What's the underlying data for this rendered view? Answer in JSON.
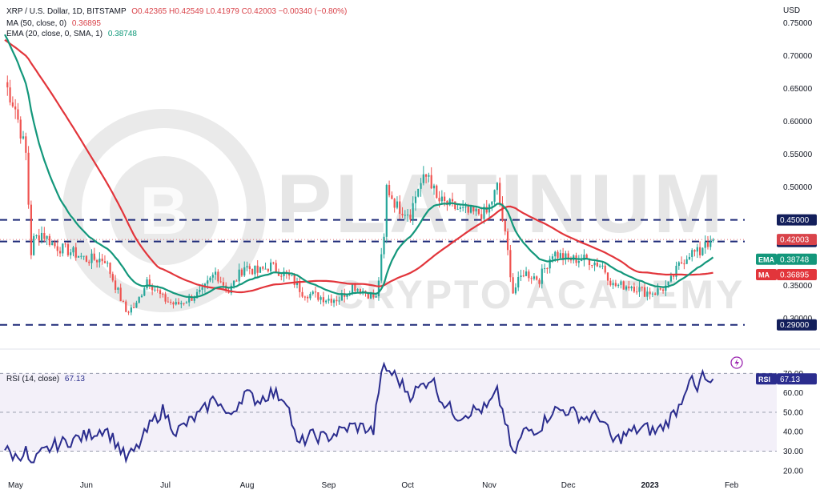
{
  "header": {
    "symbol": "XRP / U.S. Dollar, 1D, BITSTAMP",
    "ohlc": "O0.42365  H0.42549  L0.41979  C0.42003  −0.00340 (−0.80%)",
    "ma_label": "MA (50, close, 0)",
    "ma_value": "0.36895",
    "ema_label": "EMA (20, close, 0, SMA, 1)",
    "ema_value": "0.38748",
    "rsi_label": "RSI (14, close)",
    "rsi_value": "67.13"
  },
  "currency": "USD",
  "watermark": {
    "line1": "PLATINUM",
    "line2": "CRYPTO ACADEMY",
    "logo_letter": "B"
  },
  "colors": {
    "up": "#26a69a",
    "down": "#ef5350",
    "ma": "#e2353b",
    "ema": "#13977b",
    "rsi": "#2b2d8e",
    "levels": "#1e2a78"
  },
  "chart_data": [
    {
      "type": "candlestick",
      "title": "XRP / U.S. Dollar, 1D, BITSTAMP",
      "y_ticks": [
        "0.75000",
        "0.70000",
        "0.65000",
        "0.60000",
        "0.55000",
        "0.50000",
        "0.45000",
        "0.35000",
        "0.30000"
      ],
      "ylim": [
        0.275,
        0.785
      ],
      "x_ticks": [
        "May",
        "Jun",
        "Jul",
        "Aug",
        "Sep",
        "Oct",
        "Nov",
        "Dec",
        "2023",
        "Feb"
      ],
      "x_range": [
        "2022-05-01",
        "2023-02-06"
      ],
      "horizontal_levels": [
        {
          "value": 0.45,
          "label": "0.45000"
        },
        {
          "value": 0.417,
          "label": "0.41700"
        },
        {
          "value": 0.29,
          "label": "0.29000"
        }
      ],
      "price_labels": [
        {
          "text": "0.42003",
          "value": 0.42003,
          "color": "#d9434a"
        },
        {
          "text": "EMA",
          "value": 0.38748,
          "color": "#13977b"
        },
        {
          "text": "0.38748",
          "value": 0.38748,
          "color": "#13977b"
        },
        {
          "text": "MA",
          "value": 0.36895,
          "color": "#e2353b"
        },
        {
          "text": "0.36895",
          "value": 0.36895,
          "color": "#e2353b"
        }
      ],
      "close_anchors": [
        [
          "2022-05-01",
          0.66
        ],
        [
          "2022-05-05",
          0.62
        ],
        [
          "2022-05-09",
          0.55
        ],
        [
          "2022-05-11",
          0.4
        ],
        [
          "2022-05-12",
          0.42
        ],
        [
          "2022-05-15",
          0.43
        ],
        [
          "2022-05-20",
          0.41
        ],
        [
          "2022-05-27",
          0.4
        ],
        [
          "2022-06-01",
          0.39
        ],
        [
          "2022-06-08",
          0.39
        ],
        [
          "2022-06-13",
          0.34
        ],
        [
          "2022-06-16",
          0.31
        ],
        [
          "2022-06-20",
          0.32
        ],
        [
          "2022-06-24",
          0.36
        ],
        [
          "2022-06-30",
          0.33
        ],
        [
          "2022-07-05",
          0.32
        ],
        [
          "2022-07-10",
          0.33
        ],
        [
          "2022-07-15",
          0.34
        ],
        [
          "2022-07-20",
          0.37
        ],
        [
          "2022-07-25",
          0.34
        ],
        [
          "2022-07-31",
          0.38
        ],
        [
          "2022-08-05",
          0.37
        ],
        [
          "2022-08-10",
          0.38
        ],
        [
          "2022-08-18",
          0.36
        ],
        [
          "2022-08-22",
          0.34
        ],
        [
          "2022-08-31",
          0.33
        ],
        [
          "2022-09-05",
          0.33
        ],
        [
          "2022-09-10",
          0.35
        ],
        [
          "2022-09-15",
          0.34
        ],
        [
          "2022-09-19",
          0.33
        ],
        [
          "2022-09-22",
          0.42
        ],
        [
          "2022-09-23",
          0.5
        ],
        [
          "2022-09-27",
          0.47
        ],
        [
          "2022-10-02",
          0.46
        ],
        [
          "2022-10-05",
          0.5
        ],
        [
          "2022-10-09",
          0.52
        ],
        [
          "2022-10-12",
          0.48
        ],
        [
          "2022-10-18",
          0.47
        ],
        [
          "2022-10-24",
          0.46
        ],
        [
          "2022-10-31",
          0.46
        ],
        [
          "2022-11-04",
          0.5
        ],
        [
          "2022-11-08",
          0.4
        ],
        [
          "2022-11-10",
          0.34
        ],
        [
          "2022-11-14",
          0.37
        ],
        [
          "2022-11-20",
          0.36
        ],
        [
          "2022-11-25",
          0.4
        ],
        [
          "2022-12-01",
          0.39
        ],
        [
          "2022-12-08",
          0.39
        ],
        [
          "2022-12-14",
          0.38
        ],
        [
          "2022-12-18",
          0.35
        ],
        [
          "2022-12-25",
          0.35
        ],
        [
          "2022-12-30",
          0.34
        ],
        [
          "2023-01-03",
          0.34
        ],
        [
          "2023-01-08",
          0.35
        ],
        [
          "2023-01-12",
          0.38
        ],
        [
          "2023-01-16",
          0.4
        ],
        [
          "2023-01-20",
          0.4
        ],
        [
          "2023-01-22",
          0.42
        ],
        [
          "2023-01-24",
          0.41
        ],
        [
          "2023-01-25",
          0.42
        ]
      ]
    },
    {
      "type": "line",
      "title": "RSI (14, close)",
      "y_ticks": [
        "70.00",
        "60.00",
        "50.00",
        "40.00",
        "30.00",
        "20.00"
      ],
      "ylim": [
        15,
        80
      ],
      "band": [
        30,
        70
      ],
      "mid": 50,
      "last_value": 67.13,
      "series": [
        {
          "values_anchors": [
            [
              "2022-05-01",
              31
            ],
            [
              "2022-05-05",
              27
            ],
            [
              "2022-05-09",
              30
            ],
            [
              "2022-05-11",
              22
            ],
            [
              "2022-05-15",
              29
            ],
            [
              "2022-05-20",
              33
            ],
            [
              "2022-05-27",
              36
            ],
            [
              "2022-06-01",
              38
            ],
            [
              "2022-06-08",
              42
            ],
            [
              "2022-06-13",
              33
            ],
            [
              "2022-06-16",
              26
            ],
            [
              "2022-06-20",
              31
            ],
            [
              "2022-06-26",
              45
            ],
            [
              "2022-06-30",
              51
            ],
            [
              "2022-07-05",
              40
            ],
            [
              "2022-07-10",
              45
            ],
            [
              "2022-07-15",
              50
            ],
            [
              "2022-07-20",
              58
            ],
            [
              "2022-07-25",
              47
            ],
            [
              "2022-07-31",
              60
            ],
            [
              "2022-08-05",
              56
            ],
            [
              "2022-08-10",
              60
            ],
            [
              "2022-08-16",
              57
            ],
            [
              "2022-08-20",
              33
            ],
            [
              "2022-08-25",
              38
            ],
            [
              "2022-08-31",
              37
            ],
            [
              "2022-09-05",
              40
            ],
            [
              "2022-09-10",
              43
            ],
            [
              "2022-09-15",
              42
            ],
            [
              "2022-09-18",
              40
            ],
            [
              "2022-09-20",
              62
            ],
            [
              "2022-09-22",
              73
            ],
            [
              "2022-09-26",
              69
            ],
            [
              "2022-10-02",
              59
            ],
            [
              "2022-10-06",
              63
            ],
            [
              "2022-10-10",
              68
            ],
            [
              "2022-10-14",
              56
            ],
            [
              "2022-10-20",
              48
            ],
            [
              "2022-10-26",
              51
            ],
            [
              "2022-10-31",
              52
            ],
            [
              "2022-11-04",
              60
            ],
            [
              "2022-11-07",
              46
            ],
            [
              "2022-11-10",
              27
            ],
            [
              "2022-11-14",
              40
            ],
            [
              "2022-11-20",
              42
            ],
            [
              "2022-11-25",
              51
            ],
            [
              "2022-12-01",
              51
            ],
            [
              "2022-12-07",
              47
            ],
            [
              "2022-12-13",
              48
            ],
            [
              "2022-12-18",
              35
            ],
            [
              "2022-12-25",
              40
            ],
            [
              "2022-12-30",
              42
            ],
            [
              "2023-01-03",
              40
            ],
            [
              "2023-01-07",
              44
            ],
            [
              "2023-01-12",
              53
            ],
            [
              "2023-01-16",
              68
            ],
            [
              "2023-01-19",
              60
            ],
            [
              "2023-01-21",
              70
            ],
            [
              "2023-01-23",
              63
            ],
            [
              "2023-01-25",
              67.13
            ]
          ]
        }
      ]
    }
  ]
}
